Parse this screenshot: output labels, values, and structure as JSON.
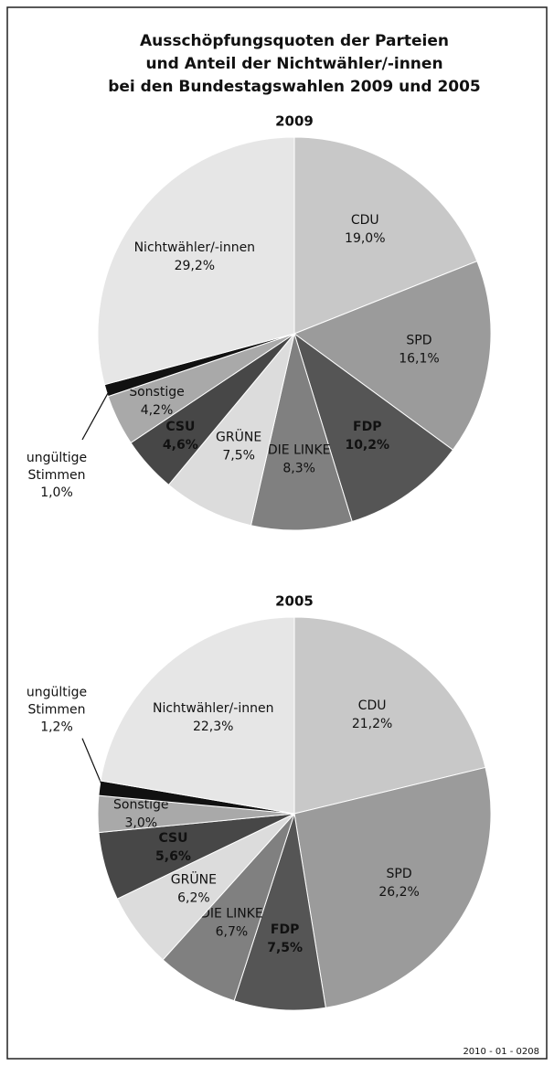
{
  "title": [
    "Ausschöpfungsquoten der Parteien",
    "und Anteil der Nichtwähler/-innen",
    "bei den Bundestagswahlen 2009 und 2005"
  ],
  "footer": "2010 - 01 - 0208",
  "chart_data": [
    {
      "type": "pie",
      "title": "2009",
      "categories": [
        "CDU",
        "SPD",
        "FDP",
        "DIE LINKE",
        "GRÜNE",
        "CSU",
        "Sonstige",
        "ungültige Stimmen",
        "Nichtwähler/-innen"
      ],
      "values": [
        19.0,
        16.1,
        10.2,
        8.3,
        7.5,
        4.6,
        4.2,
        1.0,
        29.2
      ],
      "value_labels": [
        "19,0%",
        "16,1%",
        "10,2%",
        "8,3%",
        "7,5%",
        "4,6%",
        "4,2%",
        "1,0%",
        "29,2%"
      ],
      "colors": [
        "#c8c8c8",
        "#9b9b9b",
        "#555555",
        "#808080",
        "#dcdcdc",
        "#474747",
        "#a9a9a9",
        "#111111",
        "#e6e6e6"
      ]
    },
    {
      "type": "pie",
      "title": "2005",
      "categories": [
        "CDU",
        "SPD",
        "FDP",
        "DIE LINKE",
        "GRÜNE",
        "CSU",
        "Sonstige",
        "ungültige Stimmen",
        "Nichtwähler/-innen"
      ],
      "values": [
        21.2,
        26.2,
        7.5,
        6.7,
        6.2,
        5.6,
        3.0,
        1.2,
        22.3
      ],
      "value_labels": [
        "21,2%",
        "26,2%",
        "7,5%",
        "6,7%",
        "6,2%",
        "5,6%",
        "3,0%",
        "1,2%",
        "22,3%"
      ],
      "colors": [
        "#c8c8c8",
        "#9b9b9b",
        "#555555",
        "#808080",
        "#dcdcdc",
        "#474747",
        "#a9a9a9",
        "#111111",
        "#e6e6e6"
      ]
    }
  ]
}
